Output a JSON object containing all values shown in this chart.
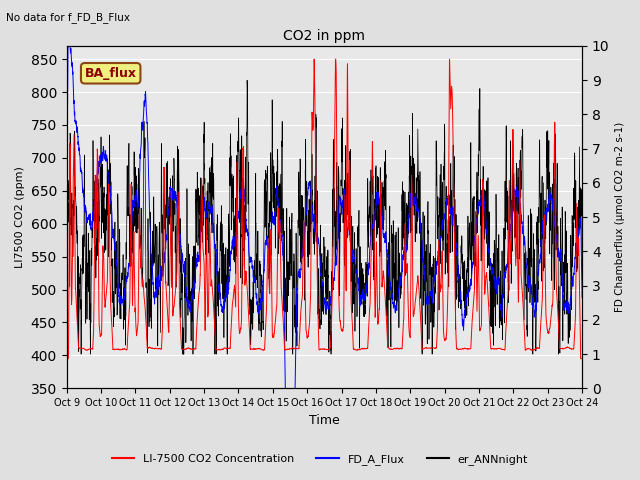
{
  "title": "CO2 in ppm",
  "top_left_text": "No data for f_FD_B_Flux",
  "box_label": "BA_flux",
  "ylabel_left": "LI7500 CO2 (ppm)",
  "ylabel_right": "FD Chamberflux (μmol CO2 m-2 s-1)",
  "xlabel": "Time",
  "ylim_left": [
    350,
    870
  ],
  "ylim_right": [
    0.0,
    10.0
  ],
  "yticks_left": [
    350,
    400,
    450,
    500,
    550,
    600,
    650,
    700,
    750,
    800,
    850
  ],
  "yticks_right": [
    0.0,
    1.0,
    2.0,
    3.0,
    4.0,
    5.0,
    6.0,
    7.0,
    8.0,
    9.0,
    10.0
  ],
  "xtick_labels": [
    "Oct 9",
    "Oct 10",
    "Oct 11",
    "Oct 12",
    "Oct 13",
    "Oct 14",
    "Oct 15",
    "Oct 16",
    "Oct 17",
    "Oct 18",
    "Oct 19",
    "Oct 20",
    "Oct 21",
    "Oct 22",
    "Oct 23",
    "Oct 24"
  ],
  "legend_labels": [
    "LI-7500 CO2 Concentration",
    "FD_A_Flux",
    "er_ANNnight"
  ],
  "legend_colors": [
    "red",
    "blue",
    "black"
  ],
  "background_color": "#e0e0e0",
  "plot_bg_color": "#e8e8e8",
  "grid_color": "white",
  "n_points": 3600,
  "seed": 7
}
